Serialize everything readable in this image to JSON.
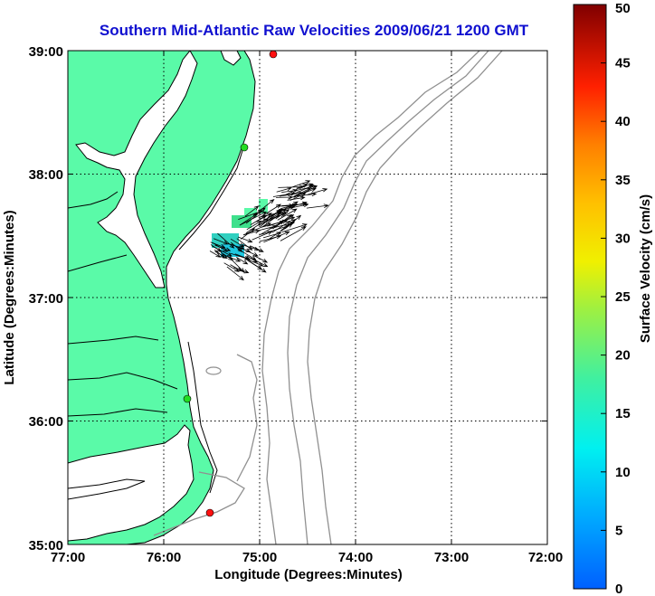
{
  "title": "Southern Mid-Atlantic Raw Velocities 2009/06/21 1200 GMT",
  "axes": {
    "xlabel": "Longitude (Degrees:Minutes)",
    "ylabel": "Latitude (Degrees:Minutes)",
    "x_ticks": [
      "77:00",
      "76:00",
      "75:00",
      "74:00",
      "73:00",
      "72:00"
    ],
    "y_ticks": [
      "39:00",
      "38:00",
      "37:00",
      "36:00",
      "35:00"
    ],
    "lon_range": [
      -77,
      -72
    ],
    "lat_range": [
      35,
      39
    ],
    "grid": true
  },
  "colorbar": {
    "label": "Surface Velocity (cm/s)",
    "ticks": [
      "50",
      "45",
      "40",
      "35",
      "30",
      "25",
      "20",
      "15",
      "10",
      "5",
      "0"
    ],
    "range": [
      0,
      50
    ]
  },
  "colors": {
    "land": "#5afaa8",
    "coastline": "#000000",
    "bathymetry": "#909090",
    "station_green": "#22dd22",
    "station_red": "#ff1010",
    "title": "#1010d0"
  },
  "stations": [
    {
      "color": "red",
      "lon": -74.87,
      "lat": 39.0
    },
    {
      "color": "green",
      "lon": -75.17,
      "lat": 38.22
    },
    {
      "color": "green",
      "lon": -75.72,
      "lat": 36.18
    },
    {
      "color": "red",
      "lon": -75.48,
      "lat": 35.25
    }
  ]
}
